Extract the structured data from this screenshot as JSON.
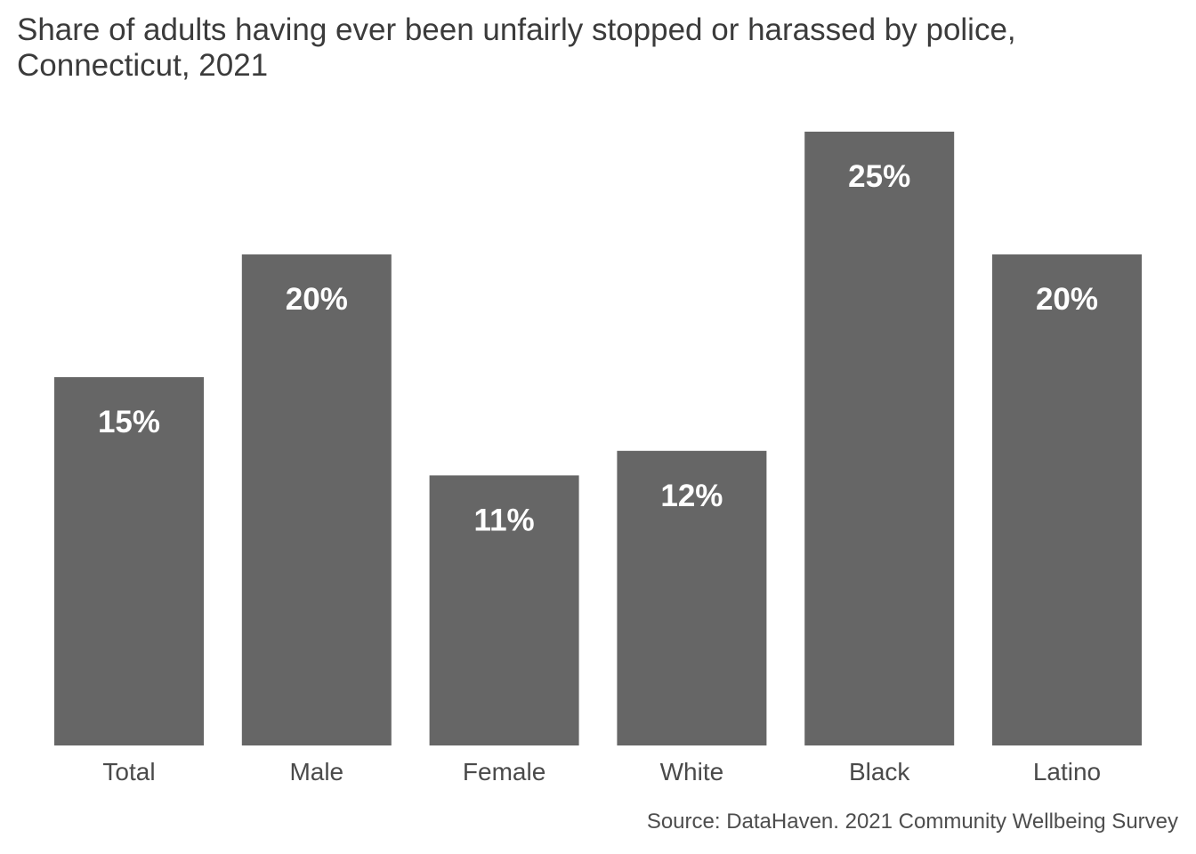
{
  "chart_data": {
    "type": "bar",
    "title_lines": [
      "Share of adults having ever been unfairly stopped or harassed by police,",
      "Connecticut, 2021"
    ],
    "categories": [
      "Total",
      "Male",
      "Female",
      "White",
      "Black",
      "Latino"
    ],
    "values": [
      15,
      20,
      11,
      12,
      25,
      20
    ],
    "value_labels": [
      "15%",
      "20%",
      "11%",
      "12%",
      "25%",
      "20%"
    ],
    "ylim": [
      0,
      25
    ],
    "grid": false,
    "bar_color": "#666666",
    "label_color": "#ffffff",
    "source": "Source: DataHaven. 2021 Community Wellbeing Survey"
  }
}
